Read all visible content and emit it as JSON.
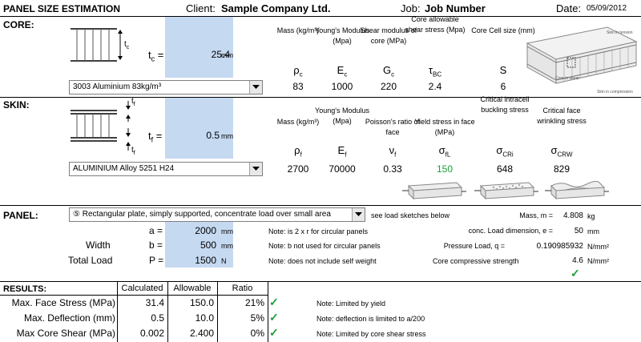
{
  "header": {
    "title": "PANEL SIZE ESTIMATION",
    "client_label": "Client:",
    "client_value": "Sample Company Ltd.",
    "job_label": "Job:",
    "job_value": "Job Number",
    "date_label": "Date:",
    "date_value": "05/09/2012"
  },
  "core": {
    "section_label": "CORE:",
    "tc_label": "t",
    "tc_sub": "c",
    "tc_eq": "=",
    "tc_value": "25.4",
    "tc_unit": "mm",
    "diagram_label": "t",
    "diagram_sub": "c",
    "material": "3003 Aluminium  83kg/m³",
    "columns": [
      {
        "header": "Mass (kg/m³)",
        "symbol": "ρ",
        "sub": "c",
        "value": "83"
      },
      {
        "header": "Young's Modulus (Mpa)",
        "symbol": "E",
        "sub": "c",
        "value": "1000"
      },
      {
        "header": "Shear modulus of core (MPa)",
        "symbol": "G",
        "sub": "c",
        "value": "220"
      },
      {
        "header": "Core allowable shear stress (Mpa)",
        "symbol": "τ",
        "sub": "BC",
        "value": "2.4"
      },
      {
        "header": "Core Cell size (mm)",
        "symbol": "S",
        "sub": "",
        "value": "6"
      }
    ],
    "image_labels": {
      "skin_tension": "Skin in tension",
      "core_shear": "Core in shear",
      "skin_compression": "Skin in compression"
    }
  },
  "skin": {
    "section_label": "SKIN:",
    "tf_label": "t",
    "tf_sub": "f",
    "tf_eq": "=",
    "tf_value": "0.5",
    "tf_unit": "mm",
    "diagram_label_top": "t",
    "diagram_label_bottom": "t",
    "diagram_sub": "f",
    "material": "ALUMINIUM Alloy 5251 H24",
    "columns": [
      {
        "header": "Mass (kg/m³)",
        "symbol": "ρ",
        "sub": "f",
        "value": "2700"
      },
      {
        "header": "Young's Modulus (Mpa)",
        "symbol": "E",
        "sub": "f",
        "value": "70000"
      },
      {
        "header": "Poisson's ratio of face",
        "symbol": "ν",
        "sub": "f",
        "value": "0.33"
      },
      {
        "header": "Yield stress in face (MPa)",
        "symbol": "σ",
        "sub": "fL",
        "value": "150"
      },
      {
        "header": "Critical intracell buckling stress",
        "symbol": "σ",
        "sub": "CRi",
        "value": "648"
      },
      {
        "header": "Critical face wrinkling stress",
        "symbol": "σ",
        "sub": "CRW",
        "value": "829"
      }
    ]
  },
  "panel": {
    "section_label": "PANEL:",
    "load_case": "⑤ Rectangular plate, simply supported, concentrate load over small area",
    "load_sketch_note": "see load sketches below",
    "a_label": "a =",
    "a_value": "2000",
    "a_unit": "mm",
    "width_label": "Width",
    "b_label": "b =",
    "b_value": "500",
    "b_unit": "mm",
    "load_label": "Total Load",
    "p_label": "P =",
    "p_value": "1500",
    "p_unit": "N",
    "note_a": "Note: is 2 x r for circular panels",
    "note_b": "Note: b not used for circular panels",
    "note_p": "Note: does not include self weight",
    "mass_label": "Mass, m =",
    "mass_value": "4.808",
    "mass_unit": "kg",
    "conc_label": "conc. Load dimension, e =",
    "conc_value": "50",
    "conc_unit": "mm",
    "pressure_label": "Pressure Load, q =",
    "pressure_value": "0.190985932",
    "pressure_unit": "N/mm²",
    "core_comp_label": "Core compressive strength",
    "core_comp_value": "4.6",
    "core_comp_unit": "N/mm²"
  },
  "results": {
    "section_label": "RESULTS:",
    "col_calculated": "Calculated",
    "col_allowable": "Allowable",
    "col_ratio": "Ratio",
    "rows": [
      {
        "label": "Max. Face Stress (MPa)",
        "calculated": "31.4",
        "allowable": "150.0",
        "ratio": "21%",
        "note": "Note: Limited by yield"
      },
      {
        "label": "Max. Deflection (mm)",
        "calculated": "0.5",
        "allowable": "10.0",
        "ratio": "5%",
        "note": "Note: deflection is limited to a/200"
      },
      {
        "label": "Max Core Shear (MPa)",
        "calculated": "0.002",
        "allowable": "2.400",
        "ratio": "0%",
        "note": "Note: Limited by core shear stress"
      }
    ]
  },
  "colors": {
    "input_fill": "#c5d9f1",
    "check_green": "#1a9f3a"
  }
}
